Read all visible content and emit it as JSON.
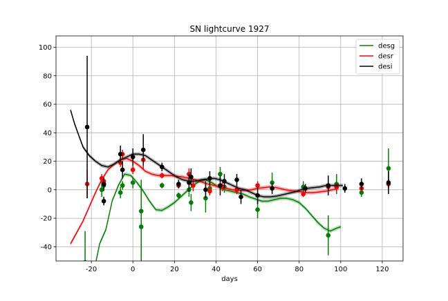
{
  "chart_data": {
    "type": "line",
    "title": "SN lightcurve 1927",
    "xlabel": "days",
    "ylabel": "",
    "xlim": [
      -37,
      130
    ],
    "ylim": [
      -50,
      108
    ],
    "xticks": [
      -20,
      0,
      20,
      40,
      60,
      80,
      100,
      120
    ],
    "yticks": [
      -40,
      -20,
      0,
      20,
      40,
      60,
      80,
      100
    ],
    "grid": true,
    "legend_position": "top-right",
    "series": [
      {
        "name": "desg",
        "color": "#008000",
        "curve": {
          "x": [
            -18,
            -16,
            -13,
            -10,
            -7,
            -4,
            -1,
            2,
            5,
            8,
            11,
            14,
            17,
            20,
            23,
            26,
            29,
            32,
            35,
            38,
            41,
            44,
            47,
            50,
            53,
            56,
            59,
            62,
            65,
            68,
            71,
            74,
            77,
            80,
            83,
            86,
            89,
            92,
            95,
            98,
            100
          ],
          "y": [
            -52,
            -38,
            -28,
            -8,
            3,
            11,
            10,
            5,
            -1,
            -8,
            -14,
            -14.5,
            -12,
            -9,
            -5,
            -1,
            3,
            6,
            7,
            5,
            2,
            0,
            -1,
            -2,
            -3,
            -5,
            -6.5,
            -8,
            -8,
            -7,
            -6,
            -6,
            -7,
            -9,
            -13,
            -18,
            -23,
            -27,
            -29,
            -27,
            -26
          ]
        },
        "points": [
          {
            "x": -23,
            "y": -51,
            "err": 22
          },
          {
            "x": -15,
            "y": 0,
            "err": 5
          },
          {
            "x": -14,
            "y": 3,
            "err": 4
          },
          {
            "x": -6,
            "y": -2,
            "err": 4
          },
          {
            "x": -5,
            "y": 3,
            "err": 3
          },
          {
            "x": 0,
            "y": 5,
            "err": 4
          },
          {
            "x": 4,
            "y": -15,
            "err": 22
          },
          {
            "x": 4,
            "y": -26,
            "err": 25
          },
          {
            "x": 14,
            "y": 3,
            "err": 2
          },
          {
            "x": 22,
            "y": -4,
            "err": 2
          },
          {
            "x": 27,
            "y": 0,
            "err": 5
          },
          {
            "x": 28,
            "y": -9,
            "err": 6
          },
          {
            "x": 35,
            "y": -6,
            "err": 10
          },
          {
            "x": 37,
            "y": 1,
            "err": 4
          },
          {
            "x": 42,
            "y": 11,
            "err": 5
          },
          {
            "x": 44,
            "y": 2,
            "err": 4
          },
          {
            "x": 50,
            "y": 0,
            "err": 3
          },
          {
            "x": 60,
            "y": -14,
            "err": 6
          },
          {
            "x": 67,
            "y": 5,
            "err": 7
          },
          {
            "x": 82,
            "y": 2,
            "err": 4
          },
          {
            "x": 94,
            "y": -32,
            "err": 14
          },
          {
            "x": 98,
            "y": 4,
            "err": 7
          },
          {
            "x": 110,
            "y": -2,
            "err": 3
          },
          {
            "x": 123,
            "y": 15,
            "err": 14
          }
        ]
      },
      {
        "name": "desr",
        "color": "#ff0000",
        "curve": {
          "x": [
            -30,
            -27,
            -24,
            -21,
            -18,
            -15,
            -12,
            -9,
            -6,
            -3,
            0,
            3,
            6,
            9,
            12,
            15,
            18,
            21,
            24,
            27,
            30,
            33,
            36,
            39,
            42,
            45,
            48,
            51,
            54,
            57,
            60,
            63,
            66,
            69,
            72,
            75,
            78,
            81,
            84,
            87,
            90,
            93,
            96,
            99
          ],
          "y": [
            -38,
            -30,
            -22,
            -12,
            -2,
            7,
            14,
            18,
            21,
            22,
            20,
            17,
            13,
            11,
            10,
            10,
            10,
            9.5,
            9,
            8,
            7,
            5.5,
            4,
            3,
            2,
            1,
            0,
            -0.5,
            -0.5,
            0,
            1,
            1.5,
            2,
            1.5,
            0.5,
            -0.5,
            -1,
            -1.5,
            -2,
            -2,
            -1.5,
            -1,
            0,
            1
          ]
        },
        "points": [
          {
            "x": -22,
            "y": 4,
            "err": 10
          },
          {
            "x": -15,
            "y": 8,
            "err": 3
          },
          {
            "x": -14,
            "y": 6,
            "err": 3
          },
          {
            "x": -6,
            "y": 19,
            "err": 3
          },
          {
            "x": -5,
            "y": 25,
            "err": 3
          },
          {
            "x": 0,
            "y": 14,
            "err": 3
          },
          {
            "x": 5,
            "y": 21,
            "err": 7
          },
          {
            "x": 14,
            "y": 10,
            "err": 2
          },
          {
            "x": 22,
            "y": 3,
            "err": 2
          },
          {
            "x": 27,
            "y": 11,
            "err": 4
          },
          {
            "x": 29,
            "y": 3,
            "err": 4
          },
          {
            "x": 37,
            "y": -1,
            "err": 3
          },
          {
            "x": 43,
            "y": 2,
            "err": 3
          },
          {
            "x": 50,
            "y": 0,
            "err": 3
          },
          {
            "x": 60,
            "y": 3,
            "err": 3
          },
          {
            "x": 82,
            "y": -3,
            "err": 2
          },
          {
            "x": 94,
            "y": 2,
            "err": 3
          },
          {
            "x": 98,
            "y": 2,
            "err": 3
          },
          {
            "x": 110,
            "y": 1,
            "err": 2
          },
          {
            "x": 123,
            "y": 4,
            "err": 2
          }
        ]
      },
      {
        "name": "desi",
        "color": "#000000",
        "curve": {
          "x": [
            -30,
            -28,
            -26,
            -24,
            -21,
            -18,
            -15,
            -12,
            -9,
            -6,
            -3,
            0,
            3,
            6,
            9,
            12,
            15,
            18,
            21,
            24,
            27,
            30,
            33,
            36,
            39,
            42,
            45,
            48,
            51,
            54,
            57,
            60,
            63,
            66,
            69,
            72,
            75,
            78,
            81,
            84,
            87,
            90,
            93,
            96,
            99,
            101
          ],
          "y": [
            56,
            46,
            38,
            30,
            24,
            20,
            17,
            16,
            18,
            21,
            23,
            25,
            25,
            24,
            21,
            18,
            15,
            12,
            9,
            7,
            6,
            6,
            7,
            7.5,
            8,
            7,
            5,
            3,
            1,
            0,
            -2,
            -4,
            -5,
            -5,
            -4.5,
            -3.5,
            -2.5,
            -1.5,
            0,
            1,
            1.5,
            2,
            3,
            3,
            3,
            3
          ]
        },
        "points": [
          {
            "x": -22,
            "y": 44,
            "err": 50
          },
          {
            "x": -14,
            "y": 4,
            "err": 4
          },
          {
            "x": -14,
            "y": -8,
            "err": 3
          },
          {
            "x": -6,
            "y": 25,
            "err": 6
          },
          {
            "x": -5,
            "y": 14,
            "err": 6
          },
          {
            "x": 0,
            "y": 23,
            "err": 6
          },
          {
            "x": 5,
            "y": 28,
            "err": 11
          },
          {
            "x": 14,
            "y": 16,
            "err": 3
          },
          {
            "x": 22,
            "y": 4,
            "err": 3
          },
          {
            "x": 27,
            "y": 5,
            "err": 6
          },
          {
            "x": 28,
            "y": 9,
            "err": 6
          },
          {
            "x": 35,
            "y": 0,
            "err": 6
          },
          {
            "x": 37,
            "y": 8,
            "err": 5
          },
          {
            "x": 42,
            "y": 3,
            "err": 7
          },
          {
            "x": 44,
            "y": 6,
            "err": 5
          },
          {
            "x": 50,
            "y": 7,
            "err": 4
          },
          {
            "x": 52,
            "y": -5,
            "err": 5
          },
          {
            "x": 60,
            "y": -4,
            "err": 6
          },
          {
            "x": 67,
            "y": 1,
            "err": 4
          },
          {
            "x": 83,
            "y": 1,
            "err": 3
          },
          {
            "x": 94,
            "y": 3,
            "err": 7
          },
          {
            "x": 102,
            "y": 1,
            "err": 3
          },
          {
            "x": 110,
            "y": 4,
            "err": 4
          },
          {
            "x": 123,
            "y": 5,
            "err": 8
          }
        ]
      }
    ]
  }
}
